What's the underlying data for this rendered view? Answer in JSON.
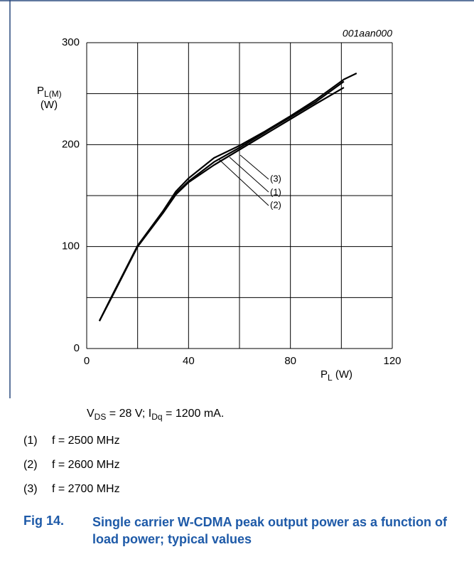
{
  "chart_data": {
    "type": "line",
    "code": "001aan000",
    "ylabel": {
      "main": "P",
      "sub": "L(M)",
      "unit": "(W)"
    },
    "xlabel": {
      "main": "P",
      "sub": "L",
      "unit": " (W)"
    },
    "xlim": [
      0,
      120
    ],
    "xticks": [
      0,
      40,
      80,
      120
    ],
    "xminor": [
      20,
      60,
      100
    ],
    "ylim": [
      0,
      300
    ],
    "yticks": [
      0,
      100,
      200,
      300
    ],
    "yminor": [
      50,
      150,
      250
    ],
    "grid": true,
    "series": [
      {
        "name": "(1)",
        "label": "f = 2500 MHz",
        "color": "#000000",
        "x": [
          5,
          10,
          20,
          30,
          35,
          40,
          50,
          60,
          70,
          80,
          90,
          101
        ],
        "values": [
          27,
          52,
          100,
          134,
          152,
          164,
          183,
          197,
          212,
          227,
          242,
          262
        ]
      },
      {
        "name": "(2)",
        "label": "f = 2600 MHz",
        "color": "#000000",
        "x": [
          5,
          10,
          20,
          30,
          35,
          40,
          50,
          60,
          70,
          80,
          90,
          101
        ],
        "values": [
          27,
          51,
          100,
          133,
          151,
          163,
          180,
          195,
          210,
          225,
          240,
          256
        ]
      },
      {
        "name": "(3)",
        "label": "f = 2700 MHz",
        "color": "#000000",
        "x": [
          5,
          10,
          20,
          30,
          35,
          40,
          50,
          60,
          70,
          80,
          90,
          101,
          106
        ],
        "values": [
          27,
          52,
          101,
          135,
          154,
          167,
          187,
          199,
          213,
          228,
          244,
          264,
          270
        ]
      }
    ],
    "conditions": [
      "V",
      "DS",
      " = 28 V; I",
      "Dq",
      " = 1200 mA."
    ],
    "figure": {
      "number": "Fig 14.",
      "caption": "Single carrier W-CDMA peak output power as a function of load power; typical values"
    }
  }
}
